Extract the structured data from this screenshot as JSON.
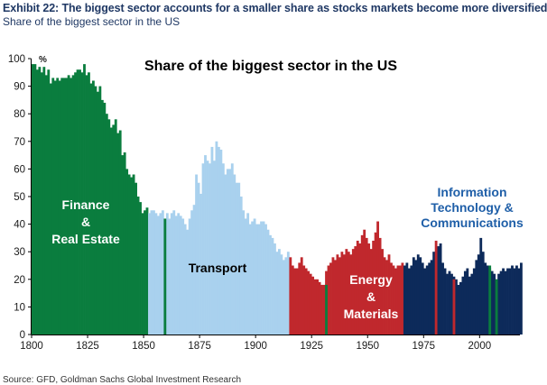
{
  "header": {
    "title": "Exhibit 22: The biggest sector accounts for a smaller share as stocks markets become more diversified",
    "subtitle": "Share of the biggest sector in the US"
  },
  "source": "Source: GFD, Goldman Sachs Global Investment Research",
  "chart_data": {
    "type": "bar",
    "title": "Share of the biggest sector in the US",
    "xlabel": "",
    "ylabel": "%",
    "xlim": [
      1800,
      2018
    ],
    "ylim": [
      0,
      100
    ],
    "yticks": [
      0,
      10,
      20,
      30,
      40,
      50,
      60,
      70,
      80,
      90,
      100
    ],
    "xticks": [
      1800,
      1825,
      1850,
      1875,
      1900,
      1925,
      1950,
      1975,
      2000
    ],
    "grid": false,
    "legend": "none",
    "colors": {
      "finance": "#0a7d3e",
      "transport": "#a9d1ee",
      "energy": "#c0282d",
      "tech": "#0d2a5a"
    },
    "annotations": [
      {
        "lines": [
          "Finance",
          "&",
          "Real Estate"
        ],
        "color": "#ffffff"
      },
      {
        "lines": [
          "Transport"
        ],
        "color": "#000000"
      },
      {
        "lines": [
          "Energy",
          "&",
          "Materials"
        ],
        "color": "#ffffff"
      },
      {
        "lines": [
          "Information",
          "Technology &",
          "Communications"
        ],
        "color": "#1f5fa8"
      }
    ],
    "series": [
      {
        "sector": "finance",
        "start_year": 1800,
        "values": [
          98,
          98,
          96,
          97,
          95,
          97,
          94,
          96,
          91,
          93,
          92,
          93,
          92,
          93,
          93,
          93,
          94,
          93,
          94,
          95,
          96,
          96,
          95,
          98,
          94,
          95,
          91,
          92,
          90,
          88,
          90,
          85,
          84,
          80,
          78,
          75,
          76,
          78,
          73,
          74,
          65,
          66,
          60,
          58,
          57,
          58,
          55,
          50,
          48,
          44,
          45,
          46
        ]
      },
      {
        "sector": "transport",
        "start_year": 1852,
        "values": [
          44,
          45,
          45,
          44,
          43,
          44,
          45,
          42,
          44,
          42,
          44,
          45,
          43,
          44,
          43,
          42,
          40,
          38,
          42,
          45,
          47,
          58,
          55,
          51,
          62,
          65,
          63,
          62,
          68,
          63,
          70,
          68,
          67,
          62,
          58,
          60,
          60,
          62,
          58,
          55,
          55,
          50,
          45,
          42,
          44,
          40,
          41,
          42,
          40,
          40,
          41,
          41,
          40,
          38,
          36,
          35,
          33,
          30,
          31,
          29,
          27,
          28,
          30
        ]
      },
      {
        "sector": "energy",
        "start_year": 1915,
        "values": [
          28,
          25,
          24,
          24,
          26,
          28,
          25,
          24,
          23,
          22,
          21,
          20,
          20,
          19,
          18,
          18,
          23,
          25,
          26,
          28,
          27,
          29,
          28,
          30,
          29,
          31,
          30,
          29,
          31,
          32,
          34,
          33,
          36,
          38,
          35,
          33,
          31,
          34,
          37,
          41,
          35,
          31,
          28,
          27,
          29,
          26,
          25,
          24,
          25,
          25,
          26
        ]
      },
      {
        "sector": "tech",
        "start_year": 1966,
        "values": [
          25,
          26,
          24,
          25,
          28,
          27,
          29,
          28,
          26,
          24,
          25,
          26,
          27,
          30,
          28,
          32,
          33,
          26,
          24,
          22,
          23,
          22,
          21,
          20,
          18,
          19,
          21,
          23,
          24,
          21,
          22,
          24,
          27,
          29,
          35,
          30,
          26,
          25,
          24,
          23,
          22,
          20,
          22,
          23,
          24,
          23,
          24,
          24,
          25,
          24,
          25,
          24,
          26
        ]
      },
      {
        "sector": "finance",
        "start_year": 1859,
        "values": [
          42
        ]
      },
      {
        "sector": "finance",
        "start_year": 1931,
        "values": [
          18
        ]
      },
      {
        "sector": "energy",
        "start_year": 1980,
        "values": [
          34
        ]
      },
      {
        "sector": "energy",
        "start_year": 1988,
        "values": [
          20
        ]
      },
      {
        "sector": "finance",
        "start_year": 2004,
        "values": [
          25
        ]
      },
      {
        "sector": "finance",
        "start_year": 2007,
        "values": [
          20
        ]
      }
    ]
  }
}
